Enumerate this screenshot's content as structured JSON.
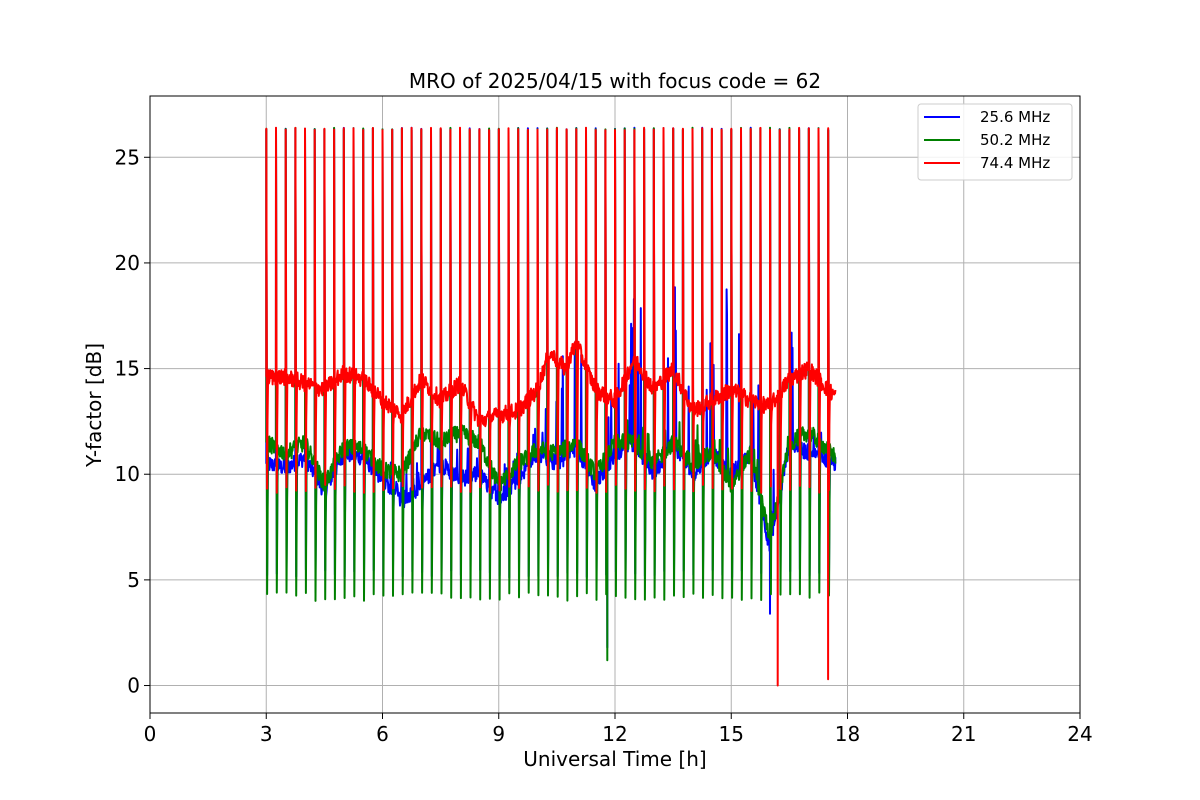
{
  "chart_data": {
    "type": "line",
    "title": "MRO of 2025/04/15 with focus code = 62",
    "xlabel": "Universal Time [h]",
    "ylabel": "Y-factor [dB]",
    "xlim": [
      0,
      24
    ],
    "ylim": [
      -1.3,
      27.9
    ],
    "xticks": [
      0,
      3,
      6,
      9,
      12,
      15,
      18,
      21,
      24
    ],
    "yticks": [
      0,
      5,
      10,
      15,
      20,
      25
    ],
    "grid": true,
    "legend_position": "top-right",
    "t_start": 3.0,
    "t_end": 17.7,
    "calibration_period_h": 0.25,
    "calibration_peak_db": 26.4,
    "series": [
      {
        "name": "25.6 MHz",
        "color": "#0000ff",
        "baseline": [
          [
            3.0,
            10.5
          ],
          [
            3.5,
            10.3
          ],
          [
            4.0,
            10.8
          ],
          [
            4.5,
            9.2
          ],
          [
            5.0,
            11.0
          ],
          [
            5.5,
            10.8
          ],
          [
            6.0,
            9.8
          ],
          [
            6.5,
            8.7
          ],
          [
            7.0,
            9.5
          ],
          [
            7.5,
            10.5
          ],
          [
            8.0,
            9.8
          ],
          [
            8.5,
            10.0
          ],
          [
            9.0,
            8.8
          ],
          [
            9.5,
            9.8
          ],
          [
            10.0,
            11.0
          ],
          [
            10.5,
            10.5
          ],
          [
            11.0,
            11.3
          ],
          [
            11.5,
            9.5
          ],
          [
            12.0,
            11.0
          ],
          [
            12.5,
            11.5
          ],
          [
            13.0,
            10.0
          ],
          [
            13.5,
            11.5
          ],
          [
            14.0,
            10.0
          ],
          [
            14.5,
            11.0
          ],
          [
            15.0,
            10.0
          ],
          [
            15.5,
            11.0
          ],
          [
            16.0,
            6.5
          ],
          [
            16.5,
            11.5
          ],
          [
            17.0,
            11.0
          ],
          [
            17.7,
            10.5
          ]
        ],
        "burst_amplitude": [
          [
            3.0,
            1.0
          ],
          [
            10.0,
            1.5
          ],
          [
            10.6,
            6.5
          ],
          [
            11.5,
            4.0
          ],
          [
            12.8,
            8.0
          ],
          [
            13.8,
            10.0
          ],
          [
            14.5,
            6.0
          ],
          [
            14.9,
            9.0
          ],
          [
            15.5,
            4.5
          ],
          [
            16.4,
            7.0
          ],
          [
            17.0,
            2.0
          ],
          [
            17.7,
            1.0
          ]
        ],
        "calibration_low": 5.3
      },
      {
        "name": "50.2 MHz",
        "color": "#008000",
        "baseline": [
          [
            3.0,
            11.5
          ],
          [
            3.5,
            11.0
          ],
          [
            4.0,
            11.5
          ],
          [
            4.5,
            9.5
          ],
          [
            5.0,
            11.3
          ],
          [
            5.5,
            11.2
          ],
          [
            6.0,
            10.2
          ],
          [
            6.5,
            10.0
          ],
          [
            7.0,
            12.0
          ],
          [
            7.5,
            11.5
          ],
          [
            8.0,
            12.0
          ],
          [
            8.5,
            11.5
          ],
          [
            9.0,
            9.5
          ],
          [
            9.5,
            10.5
          ],
          [
            10.0,
            11.2
          ],
          [
            10.5,
            11.0
          ],
          [
            11.0,
            11.5
          ],
          [
            11.5,
            10.0
          ],
          [
            12.0,
            11.5
          ],
          [
            12.5,
            11.5
          ],
          [
            13.0,
            10.5
          ],
          [
            13.5,
            11.5
          ],
          [
            14.0,
            10.5
          ],
          [
            14.5,
            11.0
          ],
          [
            15.0,
            9.5
          ],
          [
            15.5,
            11.0
          ],
          [
            16.0,
            7.0
          ],
          [
            16.5,
            11.5
          ],
          [
            17.0,
            12.0
          ],
          [
            17.7,
            10.8
          ]
        ],
        "burst_amplitude": [
          [
            3.0,
            1.0
          ],
          [
            12.0,
            1.0
          ],
          [
            13.5,
            2.0
          ],
          [
            15.0,
            1.5
          ],
          [
            17.7,
            1.0
          ]
        ],
        "calibration_low": 4.2
      },
      {
        "name": "74.4 MHz",
        "color": "#ff0000",
        "baseline": [
          [
            3.0,
            14.6
          ],
          [
            3.5,
            14.6
          ],
          [
            4.0,
            14.3
          ],
          [
            4.5,
            14.0
          ],
          [
            5.0,
            14.8
          ],
          [
            5.5,
            14.5
          ],
          [
            6.0,
            13.5
          ],
          [
            6.5,
            12.8
          ],
          [
            7.0,
            14.5
          ],
          [
            7.5,
            13.5
          ],
          [
            8.0,
            14.3
          ],
          [
            8.5,
            12.5
          ],
          [
            9.0,
            12.8
          ],
          [
            9.5,
            13.0
          ],
          [
            10.0,
            14.0
          ],
          [
            10.3,
            15.8
          ],
          [
            10.7,
            15.0
          ],
          [
            11.0,
            16.2
          ],
          [
            11.5,
            14.0
          ],
          [
            12.0,
            13.5
          ],
          [
            12.5,
            15.5
          ],
          [
            13.0,
            14.0
          ],
          [
            13.5,
            15.0
          ],
          [
            14.0,
            13.0
          ],
          [
            14.5,
            13.5
          ],
          [
            15.0,
            14.0
          ],
          [
            15.5,
            13.5
          ],
          [
            16.0,
            13.2
          ],
          [
            16.5,
            14.5
          ],
          [
            17.0,
            15.0
          ],
          [
            17.5,
            14.0
          ],
          [
            17.7,
            13.7
          ]
        ],
        "burst_amplitude": [
          [
            3.0,
            0.5
          ],
          [
            17.7,
            0.5
          ]
        ],
        "calibration_low": 9.3
      }
    ],
    "outliers": [
      {
        "series": "25.6 MHz",
        "x": 11.8,
        "y": 1.8
      },
      {
        "series": "50.2 MHz",
        "x": 11.8,
        "y": 1.2
      },
      {
        "series": "25.6 MHz",
        "x": 16.0,
        "y": 3.4
      },
      {
        "series": "74.4 MHz",
        "x": 16.2,
        "y": 0.0
      },
      {
        "series": "74.4 MHz",
        "x": 17.5,
        "y": 0.3
      }
    ]
  }
}
